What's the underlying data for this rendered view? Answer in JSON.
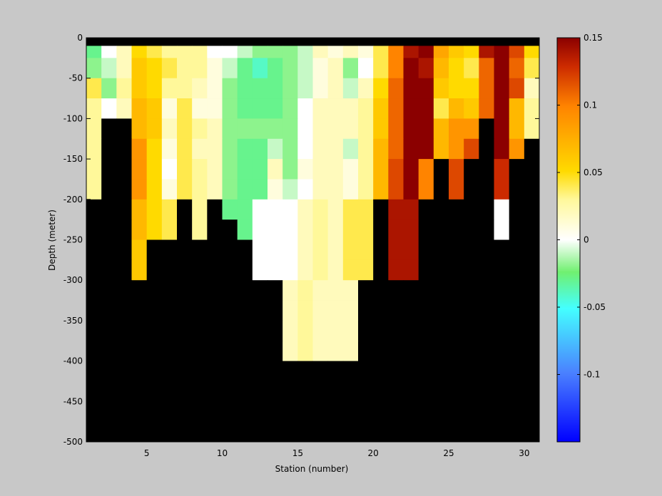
{
  "chart_data": {
    "type": "heatmap",
    "title": "",
    "xlabel": "Station (number)",
    "ylabel": "Depth (meter)",
    "xlim": [
      1,
      31
    ],
    "ylim": [
      -500,
      0
    ],
    "xticks": [
      5,
      10,
      15,
      20,
      25,
      30
    ],
    "yticks": [
      0,
      -50,
      -100,
      -150,
      -200,
      -250,
      -300,
      -350,
      -400,
      -450,
      -500
    ],
    "colorbar": {
      "range": [
        -0.15,
        0.15
      ],
      "ticks": [
        0.15,
        0.1,
        0.05,
        0,
        -0.05,
        -0.1
      ],
      "colormap": "blue-cyan-green-white-yellow-orange-darkred"
    },
    "no_data_color": "#000000",
    "depth_bins": [
      [
        0,
        -10
      ],
      [
        -10,
        -25
      ],
      [
        -25,
        -50
      ],
      [
        -50,
        -75
      ],
      [
        -75,
        -100
      ],
      [
        -100,
        -125
      ],
      [
        -125,
        -150
      ],
      [
        -150,
        -175
      ],
      [
        -175,
        -200
      ],
      [
        -200,
        -225
      ],
      [
        -225,
        -250
      ],
      [
        -250,
        -275
      ],
      [
        -275,
        -300
      ],
      [
        -300,
        -325
      ],
      [
        -325,
        -350
      ],
      [
        -350,
        -375
      ],
      [
        -375,
        -400
      ],
      [
        -400,
        -500
      ]
    ],
    "stations": [
      1,
      2,
      3,
      4,
      5,
      6,
      7,
      8,
      9,
      10,
      11,
      12,
      13,
      14,
      15,
      16,
      17,
      18,
      19,
      20,
      21,
      22,
      23,
      24,
      25,
      26,
      27,
      28,
      29,
      30
    ],
    "values": [
      [
        null,
        null,
        null,
        null,
        null,
        null,
        null,
        null,
        null,
        null,
        null,
        null,
        null,
        null,
        null,
        null,
        null,
        null,
        null,
        null,
        null,
        null,
        null,
        null,
        null,
        null,
        null,
        null,
        null,
        null
      ],
      [
        -0.03,
        0.0,
        0.02,
        0.05,
        0.04,
        0.03,
        0.03,
        0.03,
        0.0,
        0.0,
        -0.01,
        -0.02,
        -0.02,
        -0.02,
        -0.01,
        0.02,
        0.01,
        0.02,
        0.01,
        0.04,
        0.1,
        0.14,
        0.15,
        0.08,
        0.06,
        0.05,
        0.14,
        0.15,
        0.12,
        0.05
      ],
      [
        -0.02,
        -0.01,
        0.02,
        0.06,
        0.05,
        0.04,
        0.03,
        0.03,
        0.01,
        -0.01,
        -0.03,
        -0.04,
        -0.03,
        -0.02,
        -0.01,
        0.01,
        0.02,
        -0.02,
        0.0,
        0.04,
        0.1,
        0.15,
        0.14,
        0.07,
        0.05,
        0.04,
        0.11,
        0.15,
        0.11,
        0.04
      ],
      [
        0.04,
        -0.02,
        0.03,
        0.06,
        0.05,
        0.03,
        0.03,
        0.02,
        0.01,
        -0.02,
        -0.03,
        -0.03,
        -0.03,
        -0.02,
        -0.01,
        0.01,
        0.02,
        -0.01,
        0.02,
        0.05,
        0.11,
        0.15,
        0.15,
        0.06,
        0.05,
        0.05,
        0.11,
        0.15,
        0.12,
        0.02
      ],
      [
        0.03,
        0.0,
        0.02,
        0.07,
        0.06,
        0.01,
        0.04,
        0.01,
        0.01,
        -0.02,
        -0.03,
        -0.03,
        -0.03,
        -0.02,
        0.0,
        0.02,
        0.02,
        0.02,
        0.03,
        0.06,
        0.11,
        0.15,
        0.15,
        0.04,
        0.07,
        0.06,
        0.11,
        0.15,
        0.07,
        0.03
      ],
      [
        0.03,
        null,
        null,
        0.07,
        0.06,
        0.02,
        0.04,
        0.03,
        0.02,
        -0.02,
        -0.02,
        -0.02,
        -0.02,
        -0.02,
        0.0,
        0.02,
        0.02,
        0.02,
        0.03,
        0.06,
        0.11,
        0.15,
        0.15,
        0.07,
        0.09,
        0.09,
        null,
        0.15,
        0.07,
        0.03
      ],
      [
        0.03,
        null,
        null,
        0.09,
        0.05,
        0.01,
        0.04,
        0.02,
        0.02,
        -0.02,
        -0.03,
        -0.03,
        -0.01,
        -0.02,
        0.0,
        0.02,
        0.02,
        -0.01,
        0.03,
        0.07,
        0.11,
        0.15,
        0.15,
        0.07,
        0.09,
        0.12,
        null,
        0.15,
        0.09,
        null
      ],
      [
        0.03,
        null,
        null,
        0.09,
        0.05,
        0.0,
        0.04,
        0.03,
        0.02,
        -0.02,
        -0.03,
        -0.03,
        0.02,
        -0.02,
        0.01,
        0.02,
        0.02,
        0.01,
        0.03,
        0.07,
        0.12,
        0.15,
        0.1,
        null,
        0.12,
        null,
        null,
        0.13,
        null,
        null
      ],
      [
        0.03,
        null,
        null,
        0.09,
        0.05,
        0.01,
        0.04,
        0.03,
        0.02,
        -0.02,
        -0.03,
        -0.03,
        0.01,
        -0.01,
        0.0,
        0.02,
        0.02,
        0.01,
        0.03,
        0.07,
        0.12,
        0.15,
        0.1,
        null,
        0.12,
        null,
        null,
        0.13,
        null,
        null
      ],
      [
        null,
        null,
        null,
        0.07,
        0.05,
        0.04,
        null,
        0.03,
        null,
        -0.03,
        -0.03,
        0.0,
        0.0,
        0.0,
        0.02,
        0.03,
        0.02,
        0.04,
        0.04,
        null,
        0.14,
        0.14,
        null,
        null,
        null,
        null,
        null,
        0.0,
        null,
        null
      ],
      [
        null,
        null,
        null,
        0.07,
        0.05,
        0.04,
        null,
        0.03,
        null,
        null,
        -0.03,
        0.0,
        0.0,
        0.0,
        0.02,
        0.03,
        0.02,
        0.04,
        0.04,
        null,
        0.14,
        0.14,
        null,
        null,
        null,
        null,
        null,
        0.0,
        null,
        null
      ],
      [
        null,
        null,
        null,
        0.06,
        null,
        null,
        null,
        null,
        null,
        null,
        null,
        0.0,
        0.0,
        0.0,
        0.02,
        0.03,
        0.02,
        0.04,
        0.04,
        null,
        0.14,
        0.14,
        null,
        null,
        null,
        null,
        null,
        null,
        null,
        null
      ],
      [
        null,
        null,
        null,
        0.06,
        null,
        null,
        null,
        null,
        null,
        null,
        null,
        0.0,
        0.0,
        0.0,
        0.02,
        0.03,
        0.02,
        0.04,
        0.04,
        null,
        0.14,
        0.14,
        null,
        null,
        null,
        null,
        null,
        null,
        null,
        null
      ],
      [
        null,
        null,
        null,
        null,
        null,
        null,
        null,
        null,
        null,
        null,
        null,
        null,
        null,
        0.02,
        0.03,
        0.02,
        0.02,
        0.02,
        null,
        null,
        null,
        null,
        null,
        null,
        null,
        null,
        null,
        null,
        null,
        null
      ],
      [
        null,
        null,
        null,
        null,
        null,
        null,
        null,
        null,
        null,
        null,
        null,
        null,
        null,
        0.02,
        0.03,
        0.02,
        0.02,
        0.02,
        null,
        null,
        null,
        null,
        null,
        null,
        null,
        null,
        null,
        null,
        null,
        null
      ],
      [
        null,
        null,
        null,
        null,
        null,
        null,
        null,
        null,
        null,
        null,
        null,
        null,
        null,
        0.02,
        0.03,
        0.02,
        0.02,
        0.02,
        null,
        null,
        null,
        null,
        null,
        null,
        null,
        null,
        null,
        null,
        null,
        null
      ],
      [
        null,
        null,
        null,
        null,
        null,
        null,
        null,
        null,
        null,
        null,
        null,
        null,
        null,
        0.02,
        0.03,
        0.02,
        0.02,
        0.02,
        null,
        null,
        null,
        null,
        null,
        null,
        null,
        null,
        null,
        null,
        null,
        null
      ],
      [
        null,
        null,
        null,
        null,
        null,
        null,
        null,
        null,
        null,
        null,
        null,
        null,
        null,
        null,
        null,
        null,
        null,
        null,
        null,
        null,
        null,
        null,
        null,
        null,
        null,
        null,
        null,
        null,
        null,
        null
      ]
    ]
  }
}
